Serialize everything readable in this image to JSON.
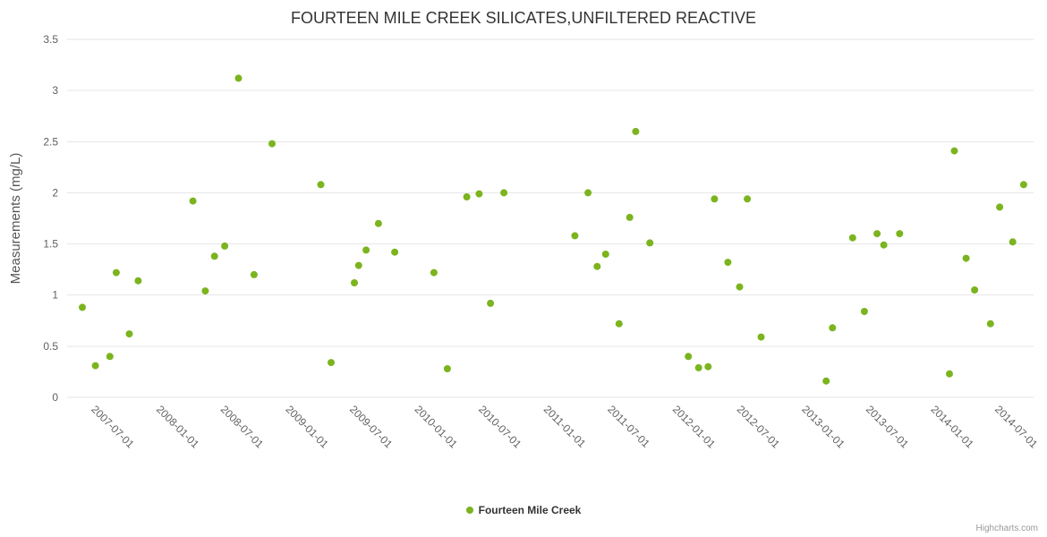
{
  "chart_data": {
    "type": "scatter",
    "title": "FOURTEEN MILE CREEK SILICATES,UNFILTERED REACTIVE",
    "ylabel": "Measurements (mg/L)",
    "xlabel": "",
    "ylim": [
      0,
      3.5
    ],
    "y_ticks": [
      0,
      0.5,
      1,
      1.5,
      2,
      2.5,
      3,
      3.5
    ],
    "x_ticks": [
      "2007-07-01",
      "2008-01-01",
      "2008-07-01",
      "2009-01-01",
      "2009-07-01",
      "2010-01-01",
      "2010-07-01",
      "2011-01-01",
      "2011-07-01",
      "2012-01-01",
      "2012-07-01",
      "2013-01-01",
      "2013-07-01",
      "2014-01-01",
      "2014-07-01"
    ],
    "x_range": [
      "2007-04-15",
      "2014-10-10"
    ],
    "grid": "horizontal",
    "legend_position": "bottom-center",
    "series": [
      {
        "name": "Fourteen Mile Creek",
        "color": "#7bb41e",
        "marker": "circle",
        "points": [
          [
            "2007-05-28",
            0.88
          ],
          [
            "2007-07-04",
            0.31
          ],
          [
            "2007-08-14",
            0.4
          ],
          [
            "2007-09-01",
            1.22
          ],
          [
            "2007-10-08",
            0.62
          ],
          [
            "2007-11-02",
            1.14
          ],
          [
            "2008-04-05",
            1.92
          ],
          [
            "2008-05-10",
            1.04
          ],
          [
            "2008-06-05",
            1.38
          ],
          [
            "2008-07-04",
            1.48
          ],
          [
            "2008-08-12",
            3.12
          ],
          [
            "2008-09-25",
            1.2
          ],
          [
            "2008-11-15",
            2.48
          ],
          [
            "2009-04-02",
            2.08
          ],
          [
            "2009-05-01",
            0.34
          ],
          [
            "2009-07-06",
            1.12
          ],
          [
            "2009-07-18",
            1.29
          ],
          [
            "2009-08-08",
            1.44
          ],
          [
            "2009-09-12",
            1.7
          ],
          [
            "2009-10-28",
            1.42
          ],
          [
            "2010-02-16",
            1.22
          ],
          [
            "2010-03-26",
            0.28
          ],
          [
            "2010-05-20",
            1.96
          ],
          [
            "2010-06-24",
            1.99
          ],
          [
            "2010-07-26",
            0.92
          ],
          [
            "2010-09-02",
            2.0
          ],
          [
            "2011-03-22",
            1.58
          ],
          [
            "2011-04-28",
            2.0
          ],
          [
            "2011-05-24",
            1.28
          ],
          [
            "2011-06-17",
            1.4
          ],
          [
            "2011-07-25",
            0.72
          ],
          [
            "2011-08-24",
            1.76
          ],
          [
            "2011-09-10",
            2.6
          ],
          [
            "2011-10-20",
            1.51
          ],
          [
            "2012-02-06",
            0.4
          ],
          [
            "2012-03-06",
            0.29
          ],
          [
            "2012-04-02",
            0.3
          ],
          [
            "2012-04-20",
            1.94
          ],
          [
            "2012-05-28",
            1.32
          ],
          [
            "2012-06-30",
            1.08
          ],
          [
            "2012-07-22",
            1.94
          ],
          [
            "2012-08-30",
            0.59
          ],
          [
            "2013-03-02",
            0.16
          ],
          [
            "2013-03-20",
            0.68
          ],
          [
            "2013-05-16",
            1.56
          ],
          [
            "2013-06-18",
            0.84
          ],
          [
            "2013-07-24",
            1.6
          ],
          [
            "2013-08-12",
            1.49
          ],
          [
            "2013-09-26",
            1.6
          ],
          [
            "2014-02-14",
            0.23
          ],
          [
            "2014-02-28",
            2.41
          ],
          [
            "2014-04-02",
            1.36
          ],
          [
            "2014-04-26",
            1.05
          ],
          [
            "2014-06-10",
            0.72
          ],
          [
            "2014-07-06",
            1.86
          ],
          [
            "2014-08-12",
            1.52
          ],
          [
            "2014-09-12",
            2.08
          ]
        ]
      }
    ]
  },
  "legend": {
    "label": "Fourteen Mile Creek"
  },
  "credits": "Highcharts.com"
}
